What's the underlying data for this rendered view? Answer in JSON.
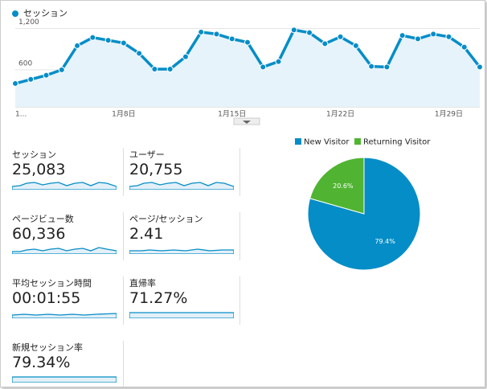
{
  "chart_data": [
    {
      "type": "line",
      "categories": [
        "1...",
        null,
        null,
        null,
        null,
        null,
        null,
        "1月8日",
        null,
        null,
        null,
        null,
        null,
        null,
        "1月15日",
        null,
        null,
        null,
        null,
        null,
        null,
        "1月22日",
        null,
        null,
        null,
        null,
        null,
        null,
        "1月29日",
        null,
        null
      ],
      "series": [
        {
          "name": "セッション",
          "color": "#058dc7",
          "values": [
            400,
            460,
            520,
            600,
            950,
            1070,
            1030,
            990,
            840,
            610,
            610,
            790,
            1150,
            1120,
            1050,
            1000,
            640,
            720,
            1180,
            1140,
            980,
            1080,
            950,
            650,
            640,
            1100,
            1050,
            1120,
            1080,
            930,
            640
          ]
        }
      ],
      "ylim": [
        60,
        1300
      ],
      "yticks": [
        {
          "value": 600,
          "label": "600"
        },
        {
          "value": 1200,
          "label": "1,200"
        }
      ],
      "grid": true
    },
    {
      "type": "pie",
      "categories": [
        "New Visitor",
        "Returning Visitor"
      ],
      "values": [
        79.4,
        20.6
      ],
      "value_labels": [
        "79.4%",
        "20.6%"
      ],
      "colors": [
        "#058dc7",
        "#50b432"
      ]
    }
  ],
  "metrics": [
    {
      "label": "セッション",
      "value": "25,083"
    },
    {
      "label": "ユーザー",
      "value": "20,755"
    },
    {
      "label": "ページビュー数",
      "value": "60,336"
    },
    {
      "label": "ページ/セッション",
      "value": "2.41"
    },
    {
      "label": "平均セッション時間",
      "value": "00:01:55"
    },
    {
      "label": "直帰率",
      "value": "71.27%"
    },
    {
      "label": "新規セッション率",
      "value": "79.34%"
    }
  ]
}
